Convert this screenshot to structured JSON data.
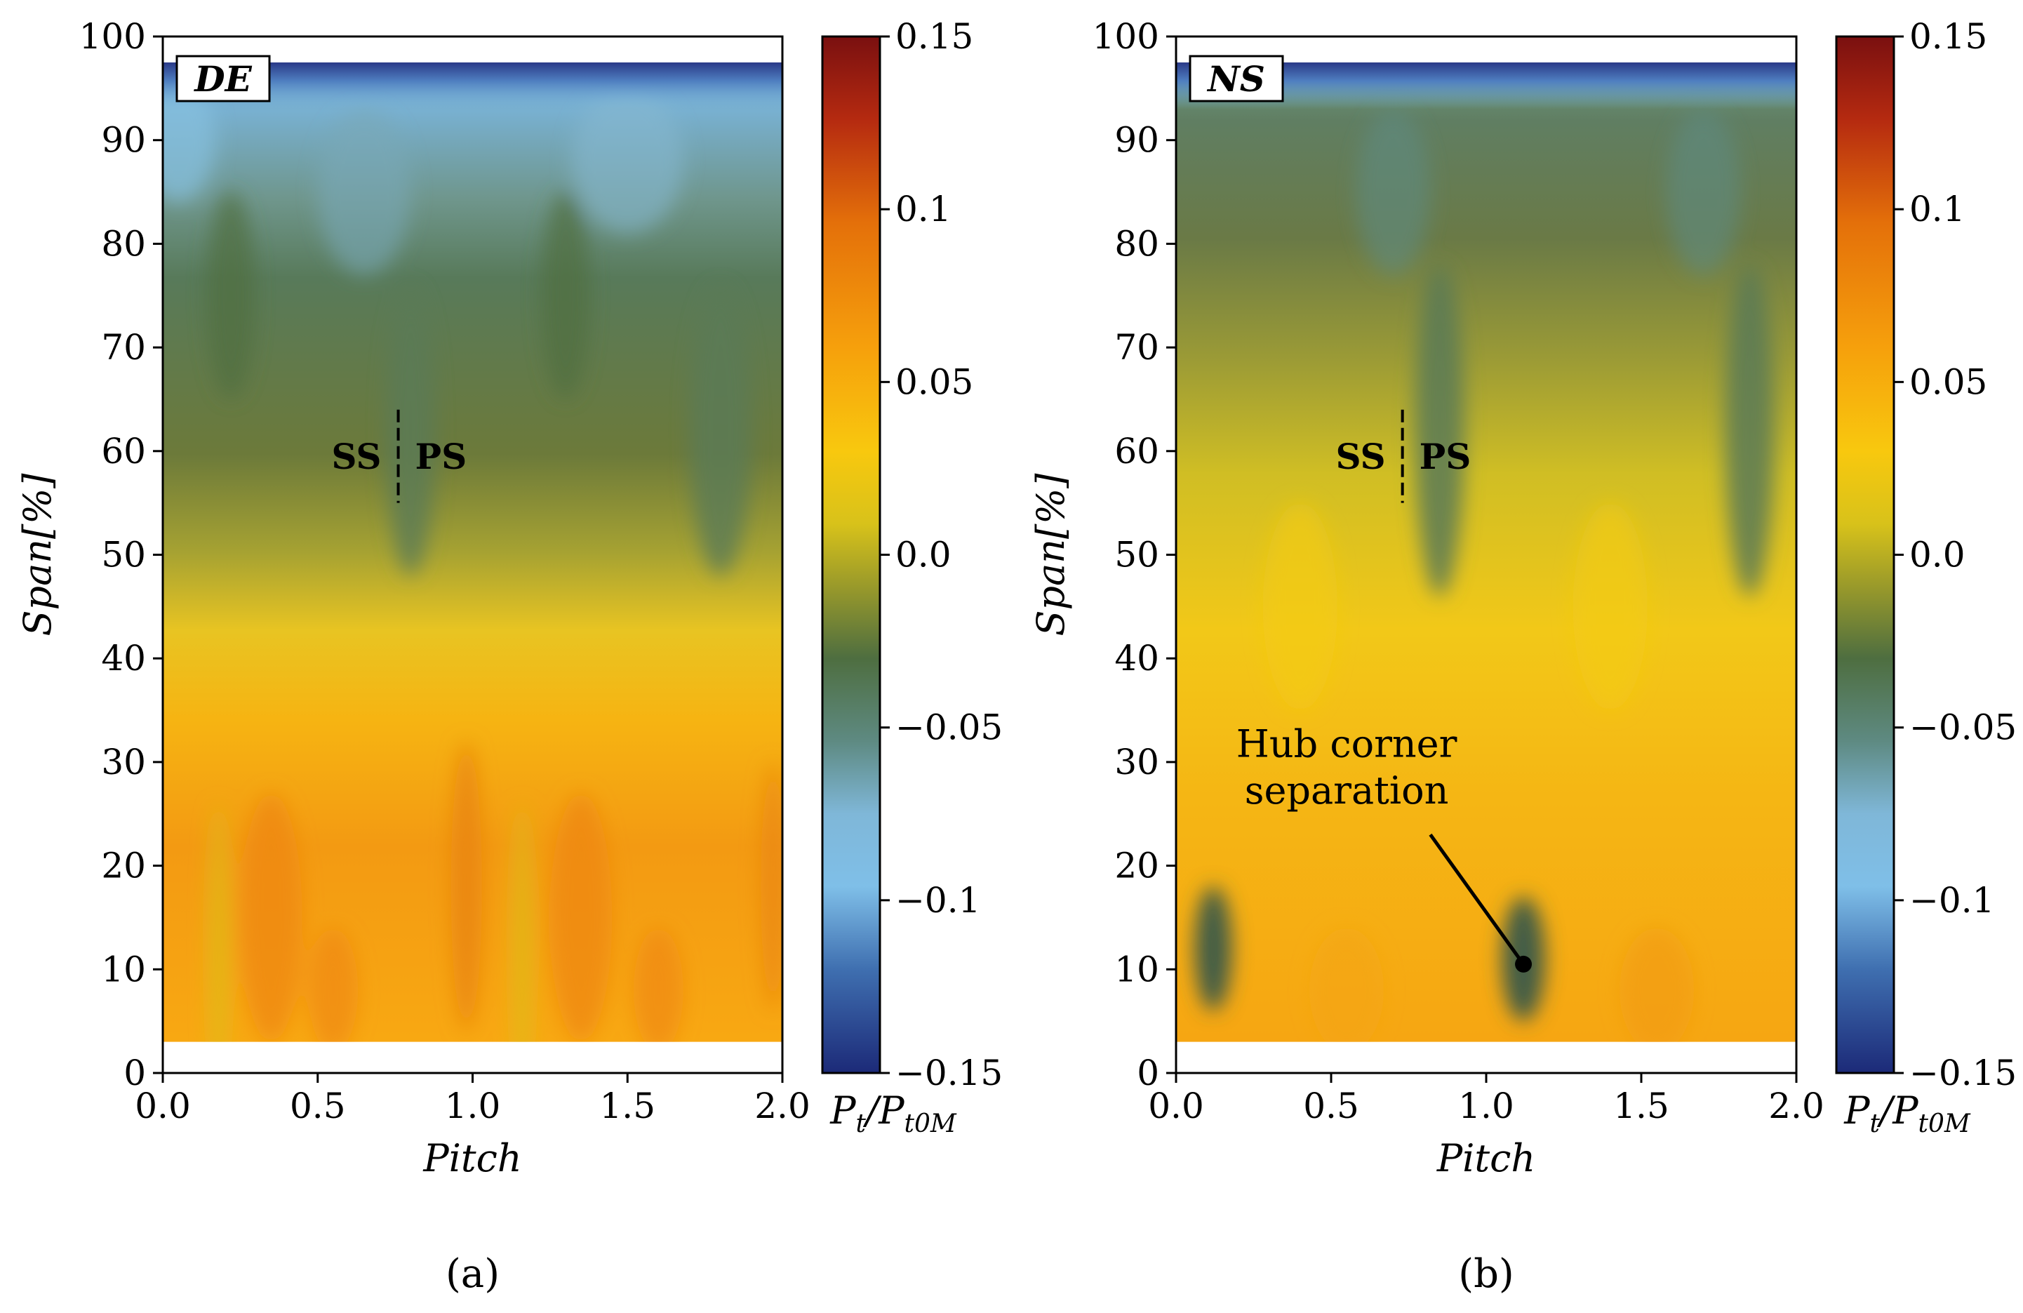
{
  "chart_data": [
    {
      "type": "heatmap",
      "panel_id": "a",
      "caption": "(a)",
      "panel_tag": "DE",
      "xlabel": "Pitch",
      "ylabel": "Span[%]",
      "xlim": [
        0.0,
        2.0
      ],
      "ylim": [
        0,
        100
      ],
      "xticks": [
        "0.0",
        "0.5",
        "1.0",
        "1.5",
        "2.0"
      ],
      "yticks": [
        "0",
        "10",
        "20",
        "30",
        "40",
        "50",
        "60",
        "70",
        "80",
        "90",
        "100"
      ],
      "data_extent": {
        "span": [
          3,
          97.5
        ],
        "pitch": [
          0.0,
          2.0
        ]
      },
      "colorbar": {
        "label": "P_t/P_t0M",
        "range": [
          -0.15,
          0.15
        ],
        "ticks": [
          "0.15",
          "0.1",
          "0.05",
          "0.0",
          "−0.05",
          "−0.1",
          "−0.15"
        ]
      },
      "annotations": {
        "ss": "SS",
        "ps": "PS",
        "divider_pitch": 0.76,
        "divider_span": [
          55,
          64
        ]
      },
      "field_regions": [
        {
          "description_span": "85-97",
          "typical_value": -0.08
        },
        {
          "description_span": "45-85",
          "typical_value": -0.04
        },
        {
          "description_span": "3-40",
          "typical_value": 0.07
        }
      ]
    },
    {
      "type": "heatmap",
      "panel_id": "b",
      "caption": "(b)",
      "panel_tag": "NS",
      "xlabel": "Pitch",
      "ylabel": "Span[%]",
      "xlim": [
        0.0,
        2.0
      ],
      "ylim": [
        0,
        100
      ],
      "xticks": [
        "0.0",
        "0.5",
        "1.0",
        "1.5",
        "2.0"
      ],
      "yticks": [
        "0",
        "10",
        "20",
        "30",
        "40",
        "50",
        "60",
        "70",
        "80",
        "90",
        "100"
      ],
      "data_extent": {
        "span": [
          3,
          97.5
        ],
        "pitch": [
          0.0,
          2.0
        ]
      },
      "colorbar": {
        "label": "P_t/P_t0M",
        "range": [
          -0.15,
          0.15
        ],
        "ticks": [
          "0.15",
          "0.1",
          "0.05",
          "0.0",
          "−0.05",
          "−0.1",
          "−0.15"
        ]
      },
      "annotations": {
        "ss": "SS",
        "ps": "PS",
        "divider_pitch": 0.73,
        "divider_span": [
          55,
          64
        ],
        "callout_line1": "Hub corner",
        "callout_line2": "separation",
        "callout_point": {
          "pitch": 1.12,
          "span": 10.5
        }
      },
      "field_regions": [
        {
          "description_span": "85-97",
          "typical_value": -0.05
        },
        {
          "description_span": "45-85",
          "typical_value": -0.02
        },
        {
          "description_span": "3-40",
          "typical_value": 0.05
        }
      ]
    }
  ]
}
